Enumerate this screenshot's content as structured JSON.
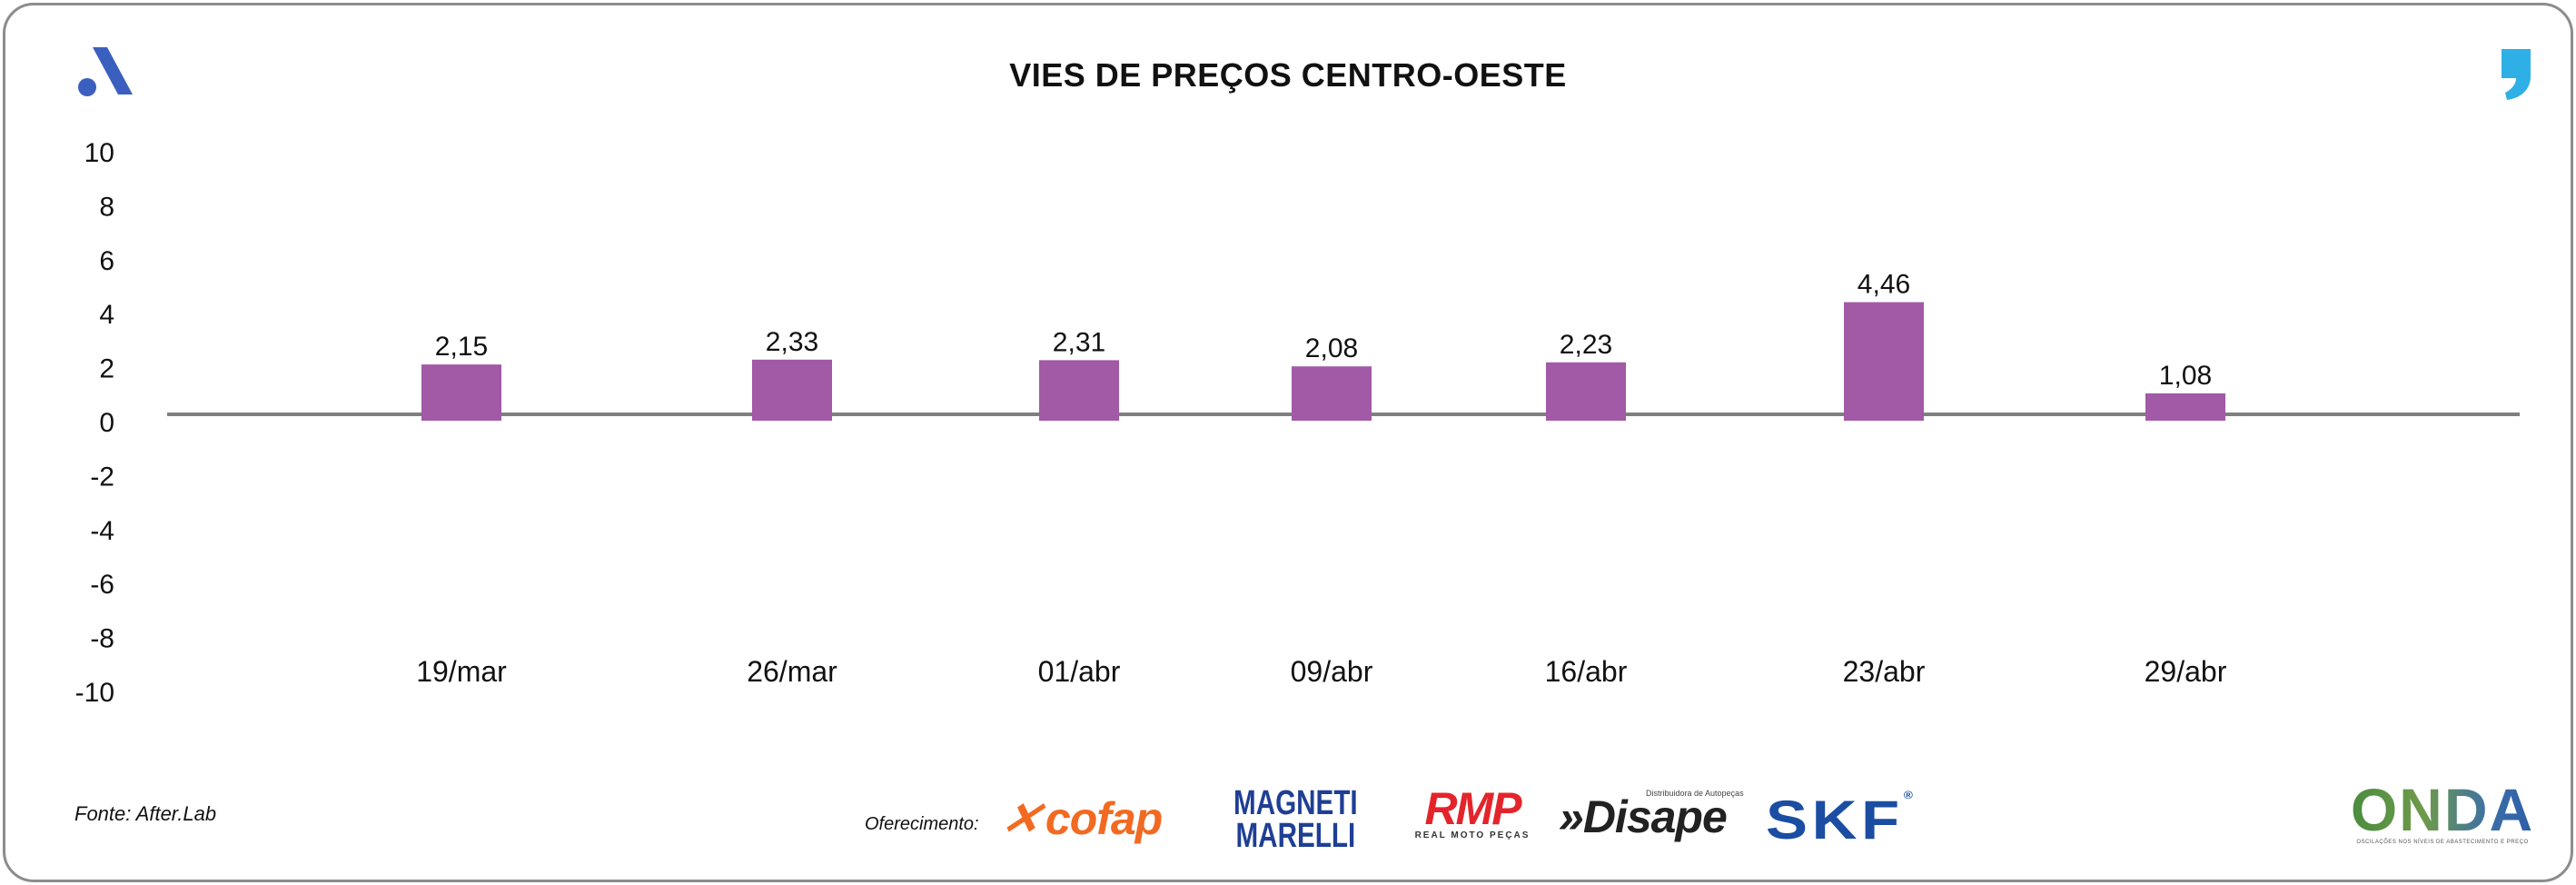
{
  "header": {
    "title": "VIES DE PREÇOS CENTRO-OESTE"
  },
  "footer": {
    "source": "Fonte: After.Lab",
    "sponsor_label": "Oferecimento:",
    "sponsors": {
      "cofap": "cofap",
      "magneti_line1": "MAGNETI",
      "magneti_line2": "MARELLI",
      "rmp": "RMP",
      "rmp_tagline": "REAL MOTO PEÇAS",
      "disape": "Disape",
      "disape_tagline": "Distribuidora de Autopeças",
      "skf": "SKF"
    },
    "onda": {
      "word": "ONDA",
      "tagline": "OSCILAÇÕES NOS NÍVEIS DE ABASTECIMENTO E PREÇO"
    }
  },
  "colors": {
    "bar": "#a259a6",
    "axis": "#7f7f7f",
    "brand_blue": "#3b5fbf",
    "brand_cyan": "#2eb0e6"
  },
  "chart_data": {
    "type": "bar",
    "title": "VIES DE PREÇOS CENTRO-OESTE",
    "xlabel": "",
    "ylabel": "",
    "ylim": [
      -10,
      10
    ],
    "yticks": [
      10,
      8,
      6,
      4,
      2,
      0,
      -2,
      -4,
      -6,
      -8,
      -10
    ],
    "grid": false,
    "legend": "none",
    "categories": [
      "19/mar",
      "26/mar",
      "01/abr",
      "09/abr",
      "16/abr",
      "23/abr",
      "29/abr"
    ],
    "values": [
      2.15,
      2.33,
      2.31,
      2.08,
      2.23,
      4.46,
      1.08
    ],
    "labels": [
      "2,15",
      "2,33",
      "2,31",
      "2,08",
      "2,23",
      "4,46",
      "1,08"
    ]
  }
}
